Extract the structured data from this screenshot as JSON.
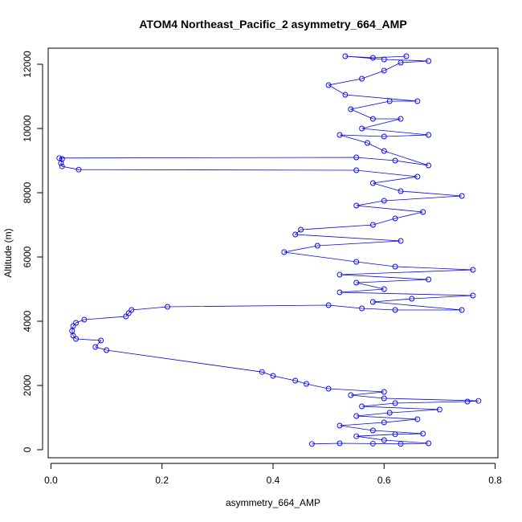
{
  "chart_data": {
    "type": "scatter",
    "title": "ATOM4 Northeast_Pacific_2 asymmetry_664_AMP",
    "xlabel": "asymmetry_664_AMP",
    "ylabel": "Altitude (m)",
    "xlim": [
      -0.005,
      0.805
    ],
    "ylim": [
      -250,
      12500
    ],
    "xticks": [
      0,
      0.2,
      0.4,
      0.6,
      0.8
    ],
    "yticks": [
      0,
      2000,
      4000,
      6000,
      8000,
      10000,
      12000
    ],
    "xtick_labels": [
      "0.0",
      "0.2",
      "0.4",
      "0.6",
      "0.8"
    ],
    "ytick_labels": [
      "0",
      "2000",
      "4000",
      "6000",
      "8000",
      "10000",
      "12000"
    ],
    "grid": false,
    "legend": "none",
    "color": "#0000ff",
    "series": [
      {
        "points": [
          [
            0.47,
            180
          ],
          [
            0.52,
            200
          ],
          [
            0.58,
            190
          ],
          [
            0.63,
            180
          ],
          [
            0.68,
            200
          ],
          [
            0.6,
            300
          ],
          [
            0.55,
            420
          ],
          [
            0.62,
            480
          ],
          [
            0.67,
            500
          ],
          [
            0.58,
            600
          ],
          [
            0.52,
            750
          ],
          [
            0.6,
            850
          ],
          [
            0.66,
            950
          ],
          [
            0.55,
            1050
          ],
          [
            0.61,
            1150
          ],
          [
            0.7,
            1250
          ],
          [
            0.56,
            1350
          ],
          [
            0.62,
            1450
          ],
          [
            0.75,
            1500
          ],
          [
            0.77,
            1520
          ],
          [
            0.6,
            1600
          ],
          [
            0.54,
            1700
          ],
          [
            0.6,
            1800
          ],
          [
            0.5,
            1900
          ],
          [
            0.46,
            2050
          ],
          [
            0.44,
            2150
          ],
          [
            0.4,
            2300
          ],
          [
            0.38,
            2420
          ],
          [
            0.1,
            3100
          ],
          [
            0.08,
            3200
          ],
          [
            0.09,
            3400
          ],
          [
            0.045,
            3450
          ],
          [
            0.04,
            3550
          ],
          [
            0.038,
            3700
          ],
          [
            0.04,
            3850
          ],
          [
            0.045,
            3950
          ],
          [
            0.06,
            4050
          ],
          [
            0.135,
            4150
          ],
          [
            0.14,
            4250
          ],
          [
            0.145,
            4350
          ],
          [
            0.21,
            4450
          ],
          [
            0.5,
            4500
          ],
          [
            0.56,
            4400
          ],
          [
            0.62,
            4350
          ],
          [
            0.74,
            4350
          ],
          [
            0.58,
            4600
          ],
          [
            0.65,
            4700
          ],
          [
            0.76,
            4800
          ],
          [
            0.52,
            4900
          ],
          [
            0.6,
            5000
          ],
          [
            0.55,
            5200
          ],
          [
            0.68,
            5300
          ],
          [
            0.52,
            5450
          ],
          [
            0.76,
            5600
          ],
          [
            0.62,
            5700
          ],
          [
            0.55,
            5850
          ],
          [
            0.42,
            6150
          ],
          [
            0.48,
            6350
          ],
          [
            0.63,
            6500
          ],
          [
            0.44,
            6700
          ],
          [
            0.45,
            6850
          ],
          [
            0.58,
            7000
          ],
          [
            0.62,
            7200
          ],
          [
            0.67,
            7400
          ],
          [
            0.55,
            7600
          ],
          [
            0.6,
            7750
          ],
          [
            0.74,
            7900
          ],
          [
            0.63,
            8050
          ],
          [
            0.58,
            8300
          ],
          [
            0.66,
            8500
          ],
          [
            0.55,
            8700
          ],
          [
            0.05,
            8720
          ],
          [
            0.02,
            8820
          ],
          [
            0.018,
            8920
          ],
          [
            0.02,
            9050
          ],
          [
            0.015,
            9080
          ],
          [
            0.55,
            9100
          ],
          [
            0.62,
            9000
          ],
          [
            0.68,
            8850
          ],
          [
            0.6,
            9300
          ],
          [
            0.57,
            9550
          ],
          [
            0.52,
            9800
          ],
          [
            0.6,
            9750
          ],
          [
            0.68,
            9800
          ],
          [
            0.56,
            10000
          ],
          [
            0.63,
            10300
          ],
          [
            0.58,
            10300
          ],
          [
            0.54,
            10600
          ],
          [
            0.61,
            10850
          ],
          [
            0.66,
            10850
          ],
          [
            0.53,
            11050
          ],
          [
            0.5,
            11350
          ],
          [
            0.56,
            11550
          ],
          [
            0.6,
            11800
          ],
          [
            0.63,
            12050
          ],
          [
            0.68,
            12100
          ],
          [
            0.6,
            12150
          ],
          [
            0.53,
            12250
          ],
          [
            0.58,
            12200
          ],
          [
            0.64,
            12250
          ]
        ]
      }
    ]
  }
}
